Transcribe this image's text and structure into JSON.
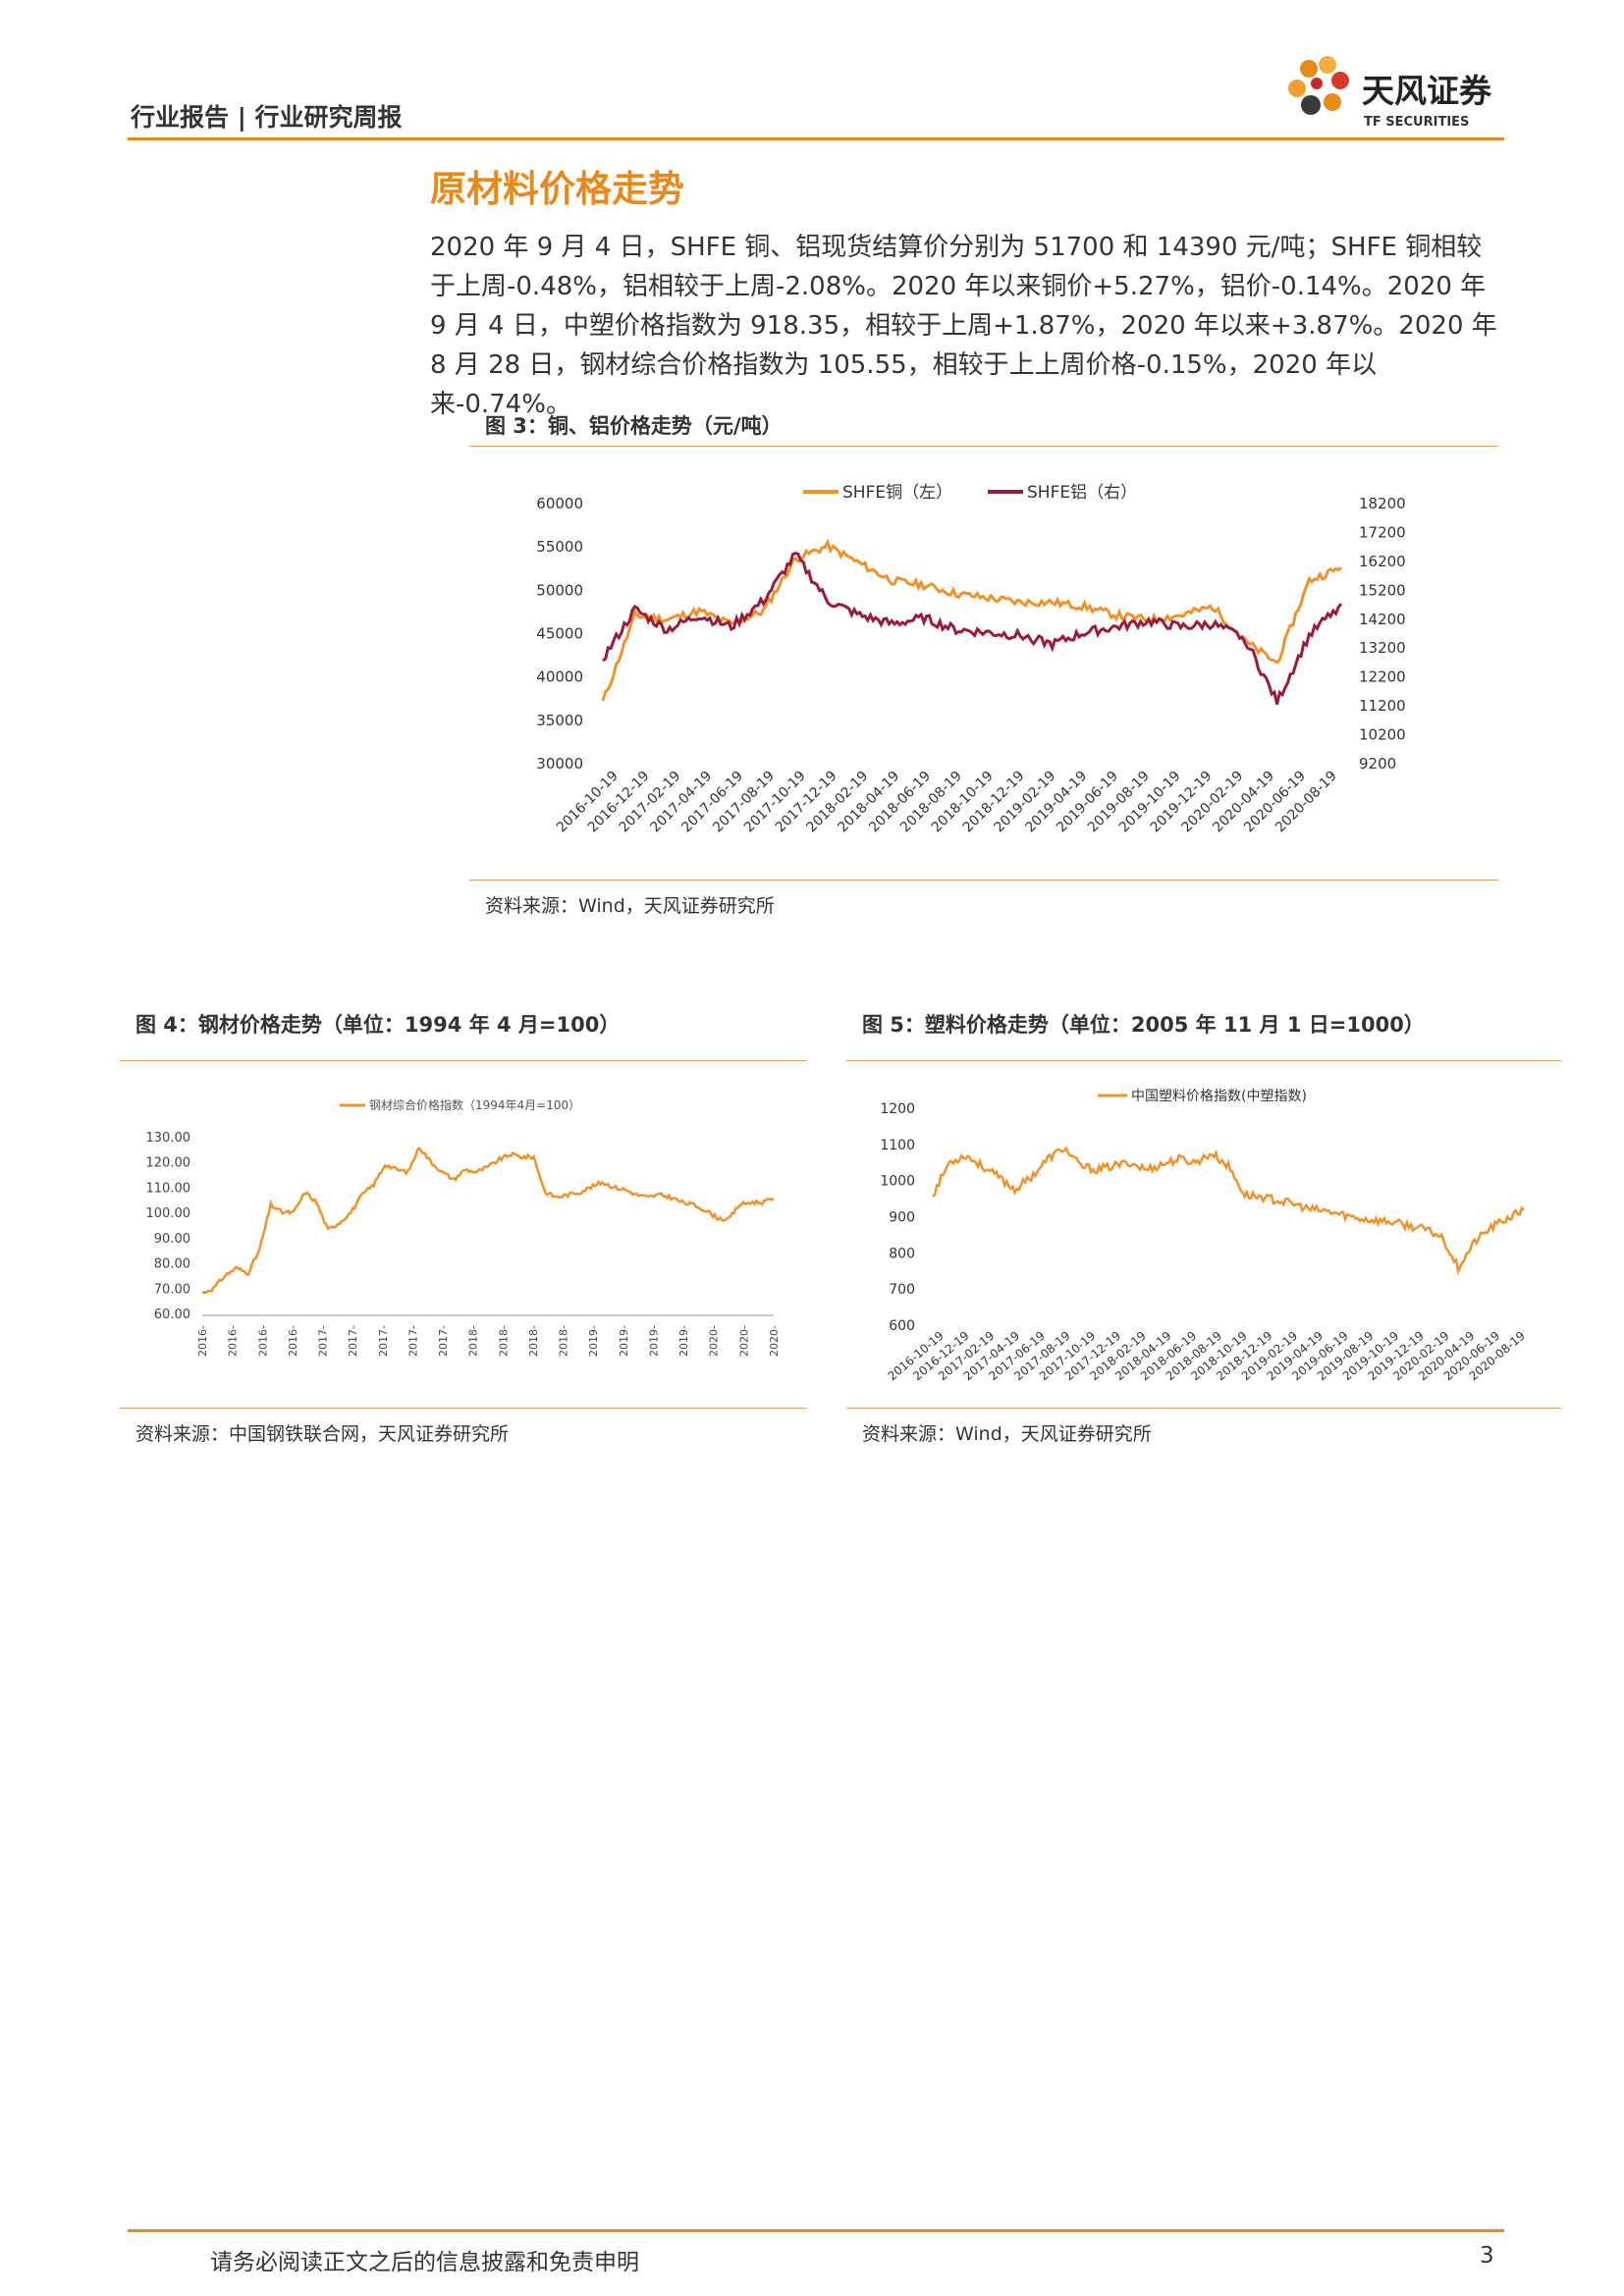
{
  "header": {
    "label": "行业报告 | 行业研究周报"
  },
  "logo": {
    "name_cn": "天风证券",
    "name_en": "TF SECURITIES"
  },
  "section": {
    "title": "原材料价格走势"
  },
  "body": {
    "paragraph": "2020 年 9 月 4 日，SHFE 铜、铝现货结算价分别为 51700 和 14390 元/吨；SHFE 铜相较于上周-0.48%，铝相较于上周-2.08%。2020 年以来铜价+5.27%，铝价-0.14%。2020 年 9 月 4 日，中塑价格指数为 918.35，相较于上周+1.87%，2020 年以来+3.87%。2020 年 8 月 28 日，钢材综合价格指数为 105.55，相较于上上周价格-0.15%，2020 年以来-0.74%。"
  },
  "fig3": {
    "title": "图 3：铜、铝价格走势（元/吨）",
    "source": "资料来源：Wind，天风证券研究所"
  },
  "fig4": {
    "title": "图 4：钢材价格走势（单位：1994 年 4 月=100）",
    "source": "资料来源：中国钢铁联合网，天风证券研究所"
  },
  "fig5": {
    "title": "图 5：塑料价格走势（单位：2005 年 11 月 1 日=1000）",
    "source": "资料来源：Wind，天风证券研究所"
  },
  "footer": {
    "disclaimer": "请务必阅读正文之后的信息披露和免责申明",
    "page": "3"
  },
  "colors": {
    "accent": "#e8891c",
    "copper": "#f0922a",
    "aluminum": "#9b1b3a"
  },
  "chart_data": [
    {
      "id": "fig3",
      "type": "line",
      "legend_position": "top",
      "categories": [
        "2016-10-19",
        "2016-12-19",
        "2017-02-19",
        "2017-04-19",
        "2017-06-19",
        "2017-08-19",
        "2017-10-19",
        "2017-12-19",
        "2018-02-19",
        "2018-04-19",
        "2018-06-19",
        "2018-08-19",
        "2018-10-19",
        "2018-12-19",
        "2019-02-19",
        "2019-04-19",
        "2019-06-19",
        "2019-08-19",
        "2019-10-19",
        "2019-12-19",
        "2020-02-19",
        "2020-04-19",
        "2020-06-19",
        "2020-08-19"
      ],
      "y_left": {
        "min": 30000,
        "max": 60000,
        "ticks": [
          "30000",
          "35000",
          "40000",
          "45000",
          "50000",
          "55000",
          "60000"
        ]
      },
      "y_right": {
        "min": 9200,
        "max": 18200,
        "ticks": [
          "9200",
          "10200",
          "11200",
          "12200",
          "13200",
          "14200",
          "15200",
          "16200",
          "17200",
          "18200"
        ]
      },
      "series": [
        {
          "name": "SHFE铜（左）",
          "axis": "left",
          "values": [
            37000,
            47000,
            46500,
            47500,
            46000,
            47500,
            53500,
            55000,
            53000,
            51000,
            50500,
            49500,
            49000,
            48500,
            48500,
            48000,
            47000,
            46500,
            47000,
            48000,
            44000,
            41500,
            51000,
            52500
          ]
        },
        {
          "name": "SHFE铝（右）",
          "axis": "right",
          "values": [
            12800,
            14500,
            13800,
            14300,
            13900,
            14800,
            16400,
            14800,
            14300,
            14000,
            14200,
            13800,
            13700,
            13600,
            13300,
            13700,
            13900,
            14100,
            13900,
            14000,
            13500,
            11300,
            13600,
            14700
          ]
        }
      ]
    },
    {
      "id": "fig4",
      "type": "line",
      "legend_position": "top",
      "y": {
        "min": 60,
        "max": 130,
        "ticks": [
          "60.00",
          "70.00",
          "80.00",
          "90.00",
          "100.00",
          "110.00",
          "120.00",
          "130.00"
        ]
      },
      "x_tick_labels": [
        "2016-",
        "2016-",
        "2016-",
        "2016-",
        "2017-",
        "2017-",
        "2017-",
        "2017-",
        "2017-",
        "2018-",
        "2018-",
        "2018-",
        "2018-",
        "2019-",
        "2019-",
        "2019-",
        "2019-",
        "2020-",
        "2020-",
        "2020-"
      ],
      "series": [
        {
          "name": "钢材综合价格指数（1994年4月=100）",
          "values": [
            68,
            70,
            75,
            78,
            76,
            85,
            103,
            100,
            100,
            108,
            104,
            93,
            96,
            100,
            107,
            111,
            119,
            117,
            116,
            126,
            120,
            116,
            113,
            117,
            116,
            118,
            121,
            123,
            122,
            122,
            108,
            106,
            107,
            108,
            110,
            112,
            110,
            109,
            107,
            106,
            107,
            106,
            104,
            103,
            101,
            98,
            97,
            103,
            104,
            104,
            105.55
          ]
        }
      ]
    },
    {
      "id": "fig5",
      "type": "line",
      "legend_position": "top",
      "y": {
        "min": 600,
        "max": 1200,
        "ticks": [
          "600",
          "700",
          "800",
          "900",
          "1000",
          "1100",
          "1200"
        ]
      },
      "x_tick_labels": [
        "2016-10-19",
        "2016-12-19",
        "2017-02-19",
        "2017-04-19",
        "2017-06-19",
        "2017-08-19",
        "2017-10-19",
        "2017-12-19",
        "2018-02-19",
        "2018-04-19",
        "2018-06-19",
        "2018-08-19",
        "2018-10-19",
        "2018-12-19",
        "2019-02-19",
        "2019-04-19",
        "2019-06-19",
        "2019-08-19",
        "2019-10-19",
        "2019-12-19",
        "2020-02-19",
        "2020-04-19",
        "2020-06-19",
        "2020-08-19"
      ],
      "series": [
        {
          "name": "中国塑料价格指数(中塑指数)",
          "values": [
            960,
            1050,
            1070,
            1040,
            1010,
            975,
            1010,
            1060,
            1090,
            1040,
            1030,
            1040,
            1050,
            1030,
            1045,
            1060,
            1050,
            1075,
            1040,
            960,
            955,
            945,
            935,
            920,
            915,
            905,
            895,
            890,
            885,
            875,
            865,
            845,
            760,
            830,
            870,
            895,
            918.35
          ]
        }
      ]
    }
  ]
}
